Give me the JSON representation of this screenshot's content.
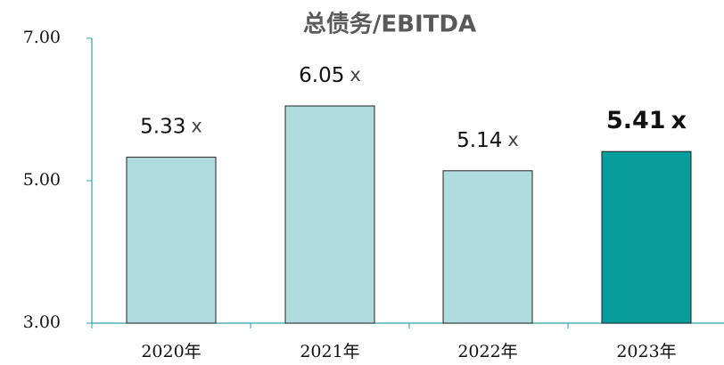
{
  "chart_data": {
    "type": "bar",
    "title": "总债务/EBITDA",
    "categories": [
      "2020年",
      "2021年",
      "2022年",
      "2023年"
    ],
    "values": [
      5.33,
      6.05,
      5.14,
      5.41
    ],
    "value_suffix": "x",
    "colors": [
      "#b1dcdf",
      "#b1dcdf",
      "#b1dcdf",
      "#089c9d"
    ],
    "ylim": [
      3,
      7
    ],
    "yticks": [
      {
        "value": 3,
        "label": "3.00"
      },
      {
        "value": 5,
        "label": "5.00"
      },
      {
        "value": 7,
        "label": "7.00"
      }
    ]
  }
}
